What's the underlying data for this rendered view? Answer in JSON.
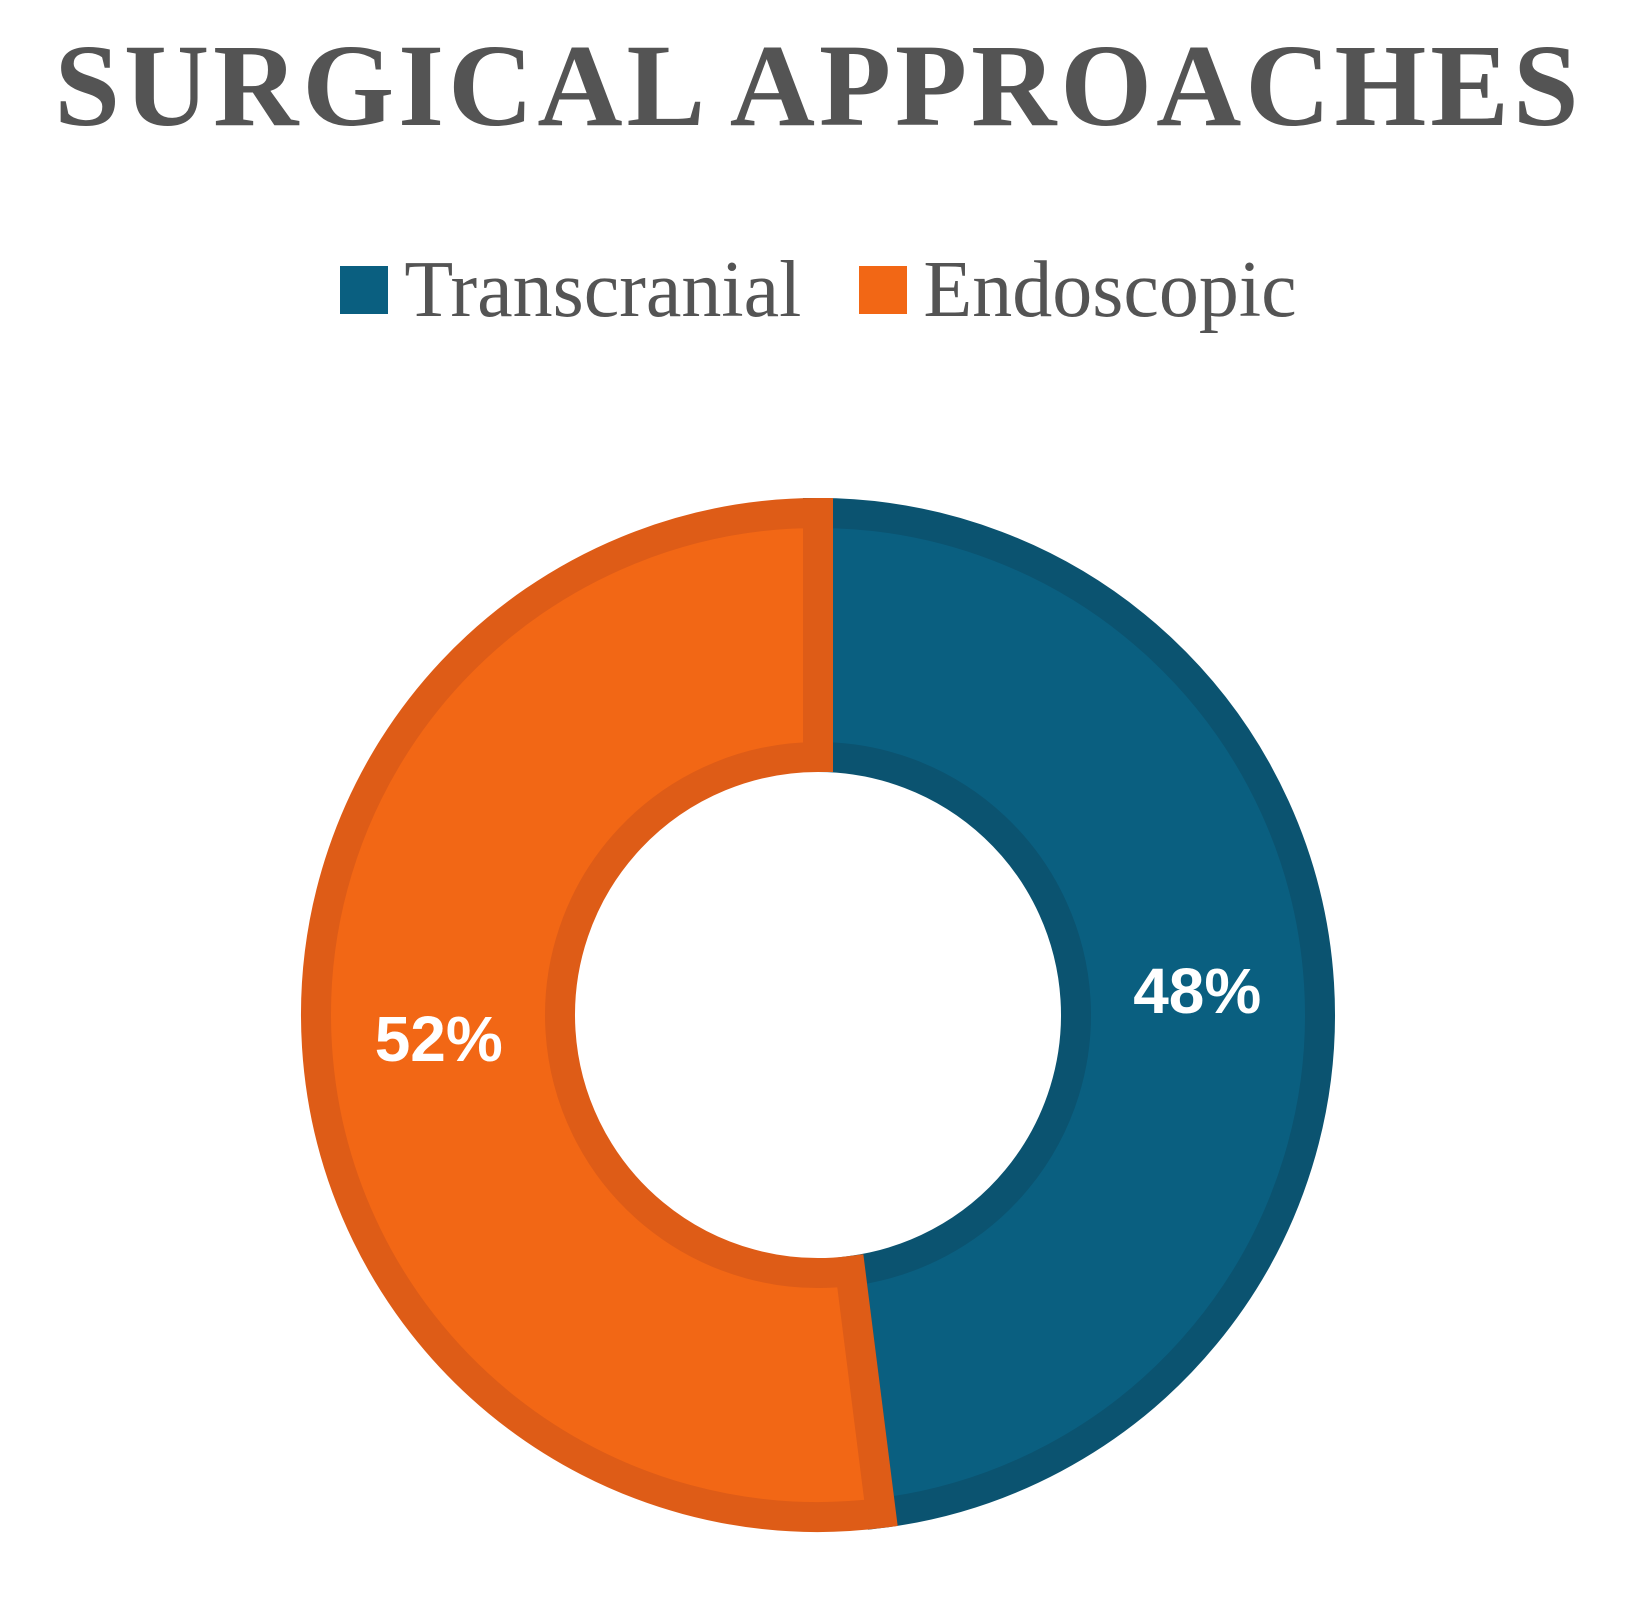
{
  "chart_data": {
    "type": "pie",
    "donut": true,
    "title": "SURGICAL APPROACHES",
    "categories": [
      "Transcranial",
      "Endoscopic"
    ],
    "values": [
      48,
      52
    ],
    "labels": [
      "48%",
      "52%"
    ],
    "colors": [
      "#0a5f80",
      "#f26715"
    ],
    "border_colors": [
      "#0b5370",
      "#de5c17"
    ],
    "legend_position": "top",
    "start": "12 o'clock, clockwise"
  }
}
